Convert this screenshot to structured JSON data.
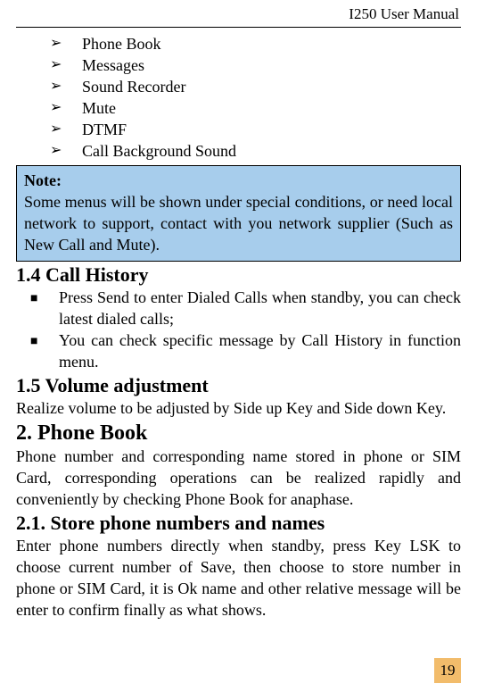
{
  "header": {
    "title": "I250 User Manual"
  },
  "menu_items": [
    "Phone Book",
    "Messages",
    "Sound Recorder",
    "Mute",
    "DTMF",
    "Call Background Sound"
  ],
  "note": {
    "label": "Note:",
    "body": "Some menus will be shown under special conditions, or need local network to support, contact with you network supplier (Such as New Call and Mute)."
  },
  "sec_call_history": {
    "heading": "1.4 Call History",
    "items": [
      "Press Send to enter Dialed Calls when standby, you can check latest dialed calls;",
      "You can check specific message by Call History in function menu."
    ]
  },
  "sec_volume": {
    "heading": "1.5 Volume adjustment",
    "body": "Realize volume to be adjusted by Side up Key and Side down Key."
  },
  "sec_phonebook": {
    "heading": "2. Phone Book",
    "body": "Phone number and corresponding name stored in phone or SIM Card, corresponding operations can be realized rapidly and conveniently by checking Phone Book for anaphase."
  },
  "sec_store": {
    "heading": "2.1. Store phone numbers and names",
    "body": "Enter phone numbers directly when standby, press Key LSK to choose current number of Save, then choose to store number in phone or SIM Card, it is Ok name and other relative message will be enter to confirm finally as what shows."
  },
  "page_number": "19",
  "colors": {
    "note_bg": "#a7cdec",
    "pagenum_bg": "#f2bc6b"
  }
}
